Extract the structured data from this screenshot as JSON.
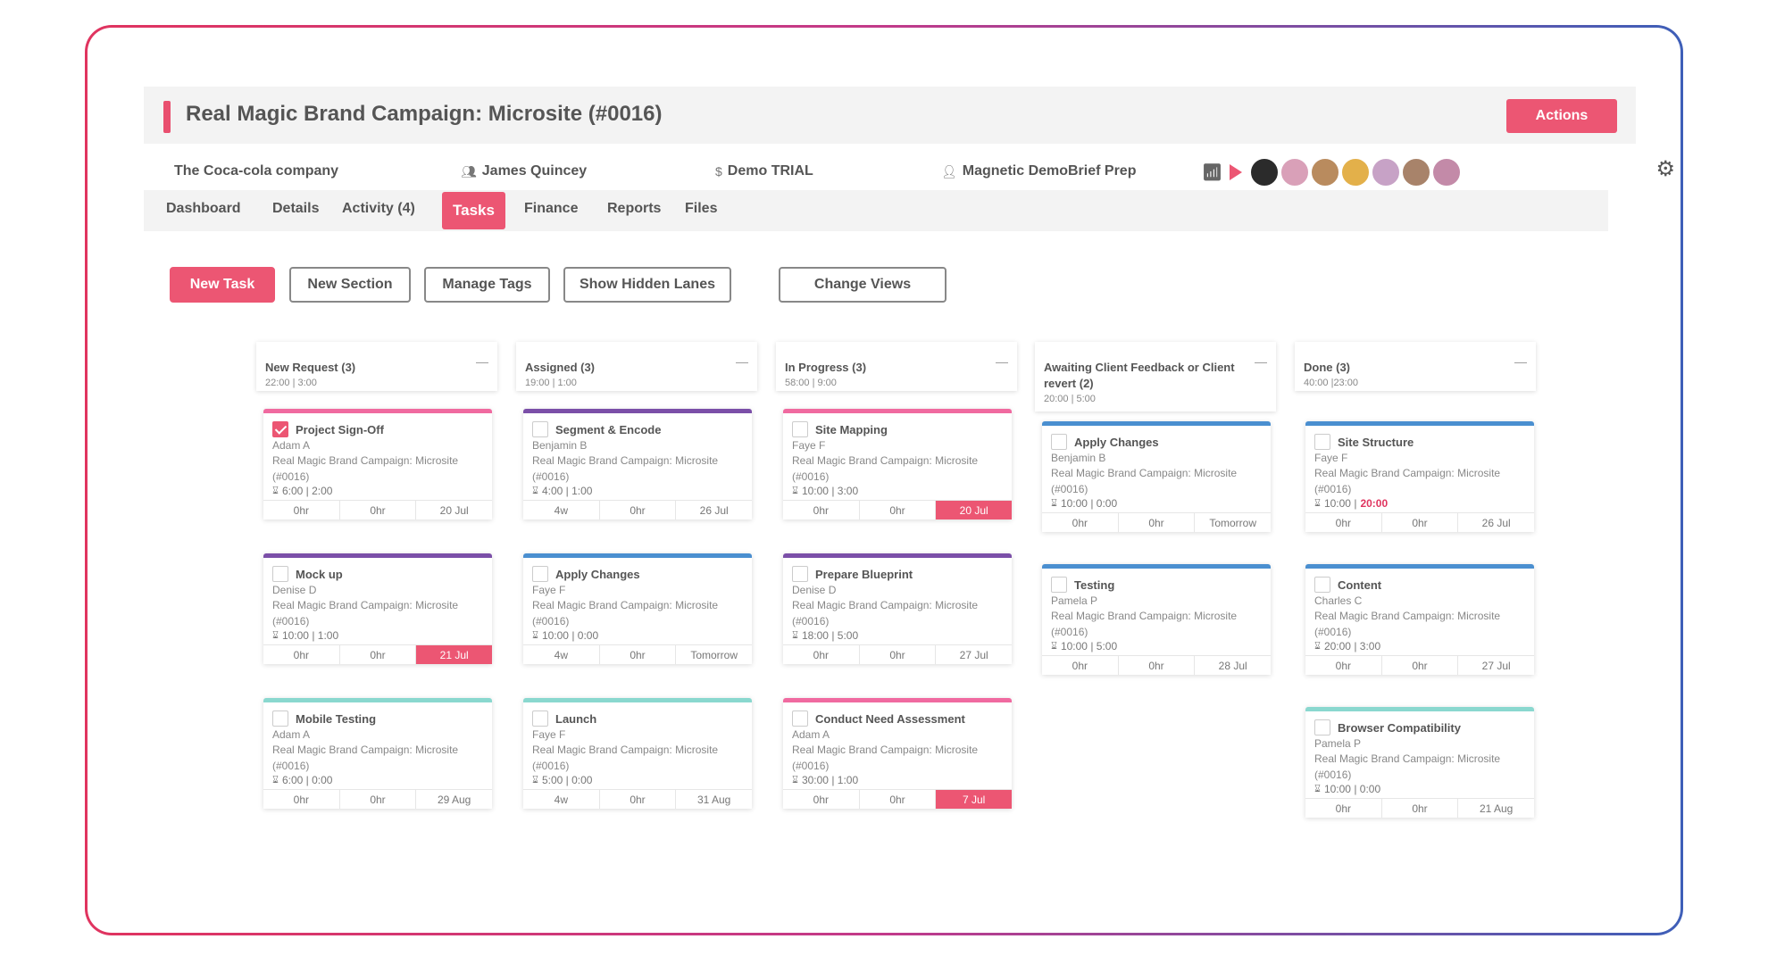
{
  "header": {
    "title": "Real Magic Brand Campaign: Microsite (#0016)",
    "actions_label": "Actions"
  },
  "info": {
    "company": "The Coca-cola company",
    "contact": "James Quincey",
    "plan": "Demo TRIAL",
    "owner": "Magnetic Demo",
    "stage": "Brief Prep"
  },
  "team_avatars": [
    "#2b2b2b",
    "#d9a0b8",
    "#b98b5e",
    "#e3b04a",
    "#c7a2c6",
    "#a8836a",
    "#c38aa8"
  ],
  "tabs": [
    {
      "label": "Dashboard",
      "active": false
    },
    {
      "label": "Details",
      "active": false
    },
    {
      "label": "Activity (4)",
      "active": false
    },
    {
      "label": "Tasks",
      "active": true
    },
    {
      "label": "Finance",
      "active": false
    },
    {
      "label": "Reports",
      "active": false
    },
    {
      "label": "Files",
      "active": false
    }
  ],
  "toolbar": {
    "new_task": "New Task",
    "new_section": "New Section",
    "manage_tags": "Manage Tags",
    "show_hidden_lanes": "Show Hidden Lanes",
    "change_views": "Change Views"
  },
  "colors": {
    "accent": "#ec5673",
    "pink": "#f06aa0",
    "purple": "#7b4fa8",
    "blue": "#4a8fd0",
    "teal": "#8ad8cf"
  },
  "lanes": [
    {
      "title": "New Request (3)",
      "times": "22:00 | 3:00",
      "cards": [
        {
          "title": "Project Sign-Off",
          "assignee": "Adam A",
          "project": "Real Magic Brand Campaign: Microsite (#0016)",
          "time": "6:00 | 2:00",
          "time_hl": "",
          "est": "0hr",
          "logged": "0hr",
          "due": "20 Jul",
          "due_alert": false,
          "checked": true,
          "color": "pink"
        },
        {
          "title": "Mock up",
          "assignee": "Denise D",
          "project": "Real Magic Brand Campaign: Microsite (#0016)",
          "time": "10:00 | 1:00",
          "time_hl": "",
          "est": "0hr",
          "logged": "0hr",
          "due": "21 Jul",
          "due_alert": true,
          "checked": false,
          "color": "purple"
        },
        {
          "title": "Mobile Testing",
          "assignee": "Adam A",
          "project": "Real Magic Brand Campaign: Microsite (#0016)",
          "time": "6:00 | 0:00",
          "time_hl": "",
          "est": "0hr",
          "logged": "0hr",
          "due": "29 Aug",
          "due_alert": false,
          "checked": false,
          "color": "teal"
        }
      ]
    },
    {
      "title": "Assigned (3)",
      "times": "19:00 | 1:00",
      "cards": [
        {
          "title": "Segment & Encode",
          "assignee": "Benjamin B",
          "project": "Real Magic Brand Campaign: Microsite (#0016)",
          "time": "4:00 | 1:00",
          "time_hl": "",
          "est": "4w",
          "logged": "0hr",
          "due": "26 Jul",
          "due_alert": false,
          "checked": false,
          "color": "purple"
        },
        {
          "title": "Apply Changes",
          "assignee": "Faye F",
          "project": "Real Magic Brand Campaign: Microsite (#0016)",
          "time": "10:00 | 0:00",
          "time_hl": "",
          "est": "4w",
          "logged": "0hr",
          "due": "Tomorrow",
          "due_alert": false,
          "checked": false,
          "color": "blue"
        },
        {
          "title": "Launch",
          "assignee": "Faye F",
          "project": "Real Magic Brand Campaign: Microsite (#0016)",
          "time": "5:00 | 0:00",
          "time_hl": "",
          "est": "4w",
          "logged": "0hr",
          "due": "31 Aug",
          "due_alert": false,
          "checked": false,
          "color": "teal"
        }
      ]
    },
    {
      "title": "In Progress (3)",
      "times": "58:00 | 9:00",
      "cards": [
        {
          "title": "Site Mapping",
          "assignee": "Faye F",
          "project": "Real Magic Brand Campaign: Microsite (#0016)",
          "time": "10:00 | 3:00",
          "time_hl": "",
          "est": "0hr",
          "logged": "0hr",
          "due": "20 Jul",
          "due_alert": true,
          "checked": false,
          "color": "pink"
        },
        {
          "title": "Prepare Blueprint",
          "assignee": "Denise D",
          "project": "Real Magic Brand Campaign: Microsite (#0016)",
          "time": "18:00 | 5:00",
          "time_hl": "",
          "est": "0hr",
          "logged": "0hr",
          "due": "27 Jul",
          "due_alert": false,
          "checked": false,
          "color": "purple"
        },
        {
          "title": "Conduct Need Assessment",
          "assignee": "Adam A",
          "project": "Real Magic Brand Campaign: Microsite (#0016)",
          "time": "30:00 | 1:00",
          "time_hl": "",
          "est": "0hr",
          "logged": "0hr",
          "due": "7 Jul",
          "due_alert": true,
          "checked": false,
          "color": "pink"
        }
      ]
    },
    {
      "title": "Awaiting Client Feedback or Client revert (2)",
      "times": "20:00 | 5:00",
      "cards": [
        {
          "title": "Apply Changes",
          "assignee": "Benjamin B",
          "project": "Real Magic Brand Campaign: Microsite (#0016)",
          "time": "10:00 | 0:00",
          "time_hl": "",
          "est": "0hr",
          "logged": "0hr",
          "due": "Tomorrow",
          "due_alert": false,
          "checked": false,
          "color": "blue"
        },
        {
          "title": "Testing",
          "assignee": "Pamela P",
          "project": "Real Magic Brand Campaign: Microsite (#0016)",
          "time": "10:00 | 5:00",
          "time_hl": "",
          "est": "0hr",
          "logged": "0hr",
          "due": "28 Jul",
          "due_alert": false,
          "checked": false,
          "color": "blue"
        }
      ]
    },
    {
      "title": "Done (3)",
      "times": "40:00 |23:00",
      "cards": [
        {
          "title": "Site Structure",
          "assignee": "Faye F",
          "project": "Real Magic Brand Campaign: Microsite (#0016)",
          "time": "10:00 | ",
          "time_hl": "20:00",
          "est": "0hr",
          "logged": "0hr",
          "due": "26 Jul",
          "due_alert": false,
          "checked": false,
          "color": "blue"
        },
        {
          "title": "Content",
          "assignee": "Charles C",
          "project": "Real Magic Brand Campaign: Microsite (#0016)",
          "time": "20:00 | 3:00",
          "time_hl": "",
          "est": "0hr",
          "logged": "0hr",
          "due": "27 Jul",
          "due_alert": false,
          "checked": false,
          "color": "blue"
        },
        {
          "title": "Browser Compatibility",
          "assignee": "Pamela P",
          "project": "Real Magic Brand Campaign: Microsite (#0016)",
          "time": "10:00 | 0:00",
          "time_hl": "",
          "est": "0hr",
          "logged": "0hr",
          "due": "21 Aug",
          "due_alert": false,
          "checked": false,
          "color": "teal"
        }
      ]
    }
  ]
}
